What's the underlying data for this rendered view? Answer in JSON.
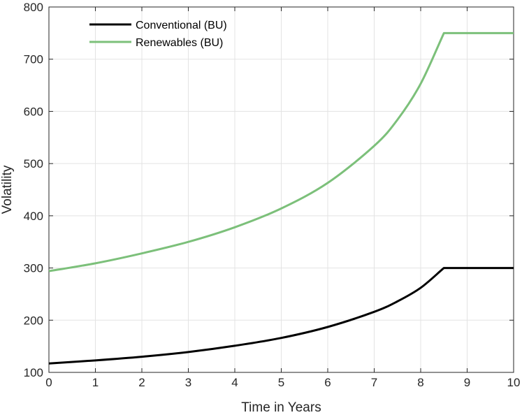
{
  "chart_data": {
    "type": "line",
    "title": "",
    "xlabel": "Time in Years",
    "ylabel": "Volatility",
    "xlim": [
      0,
      10
    ],
    "ylim": [
      100,
      800
    ],
    "x_ticks": [
      0,
      1,
      2,
      3,
      4,
      5,
      6,
      7,
      8,
      9,
      10
    ],
    "y_ticks": [
      100,
      200,
      300,
      400,
      500,
      600,
      700,
      800
    ],
    "x_tick_labels": [
      "0",
      "1",
      "2",
      "3",
      "4",
      "5",
      "6",
      "7",
      "8",
      "9",
      "10"
    ],
    "y_tick_labels": [
      "100",
      "200",
      "300",
      "400",
      "500",
      "600",
      "700",
      "800"
    ],
    "grid": true,
    "legend_position": "top-left",
    "series": [
      {
        "name": "Conventional (BU)",
        "color": "#000000",
        "x": [
          0,
          1,
          2,
          3,
          4,
          5,
          6,
          7,
          7.5,
          8,
          8.5,
          9,
          10
        ],
        "y": [
          117,
          123,
          130,
          139,
          151,
          166,
          187,
          216,
          236,
          262,
          300,
          300,
          300
        ]
      },
      {
        "name": "Renewables (BU)",
        "color": "#7cc07a",
        "x": [
          0,
          1,
          2,
          3,
          4,
          5,
          6,
          7,
          7.5,
          8,
          8.5,
          9,
          10
        ],
        "y": [
          294,
          309,
          328,
          350,
          378,
          414,
          463,
          534,
          584,
          653,
          750,
          750,
          750
        ]
      }
    ]
  }
}
